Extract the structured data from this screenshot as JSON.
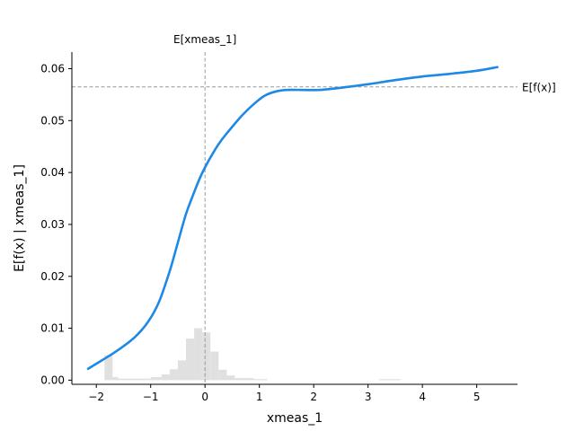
{
  "chart_data": {
    "type": "line",
    "xlabel": "xmeas_1",
    "ylabel": "E[f(x) | xmeas_1]",
    "xlim": [
      -2.45,
      5.75
    ],
    "ylim": [
      -0.0008,
      0.0632
    ],
    "x_ticks": [
      -2,
      -1,
      0,
      1,
      2,
      3,
      4,
      5
    ],
    "y_ticks": [
      0.0,
      0.01,
      0.02,
      0.03,
      0.04,
      0.05,
      0.06
    ],
    "y_tick_labels": [
      "0.00",
      "0.01",
      "0.02",
      "0.03",
      "0.04",
      "0.05",
      "0.06"
    ],
    "x_tick_labels": [
      "−2",
      "−1",
      "0",
      "1",
      "2",
      "3",
      "4",
      "5"
    ],
    "series": [
      {
        "name": "E[f(x) | xmeas_1]",
        "color": "#1e88e5",
        "x": [
          -2.15,
          -1.9,
          -1.6,
          -1.3,
          -1.05,
          -0.85,
          -0.65,
          -0.5,
          -0.35,
          -0.2,
          -0.1,
          0.0,
          0.15,
          0.3,
          0.5,
          0.7,
          0.9,
          1.1,
          1.3,
          1.5,
          1.8,
          2.1,
          2.4,
          2.7,
          3.0,
          3.5,
          4.0,
          4.5,
          5.0,
          5.38
        ],
        "y": [
          0.0022,
          0.0038,
          0.0058,
          0.0082,
          0.0112,
          0.015,
          0.021,
          0.0265,
          0.032,
          0.0362,
          0.0388,
          0.041,
          0.0438,
          0.0462,
          0.0488,
          0.0512,
          0.0532,
          0.0548,
          0.0556,
          0.0559,
          0.0559,
          0.0559,
          0.0562,
          0.0566,
          0.057,
          0.0578,
          0.0585,
          0.059,
          0.0596,
          0.0603
        ]
      }
    ],
    "reference_lines": {
      "vertical": {
        "x": 0.0,
        "label": "E[xmeas_1]"
      },
      "horizontal": {
        "y": 0.0565,
        "label": "E[f(x)]"
      },
      "color": "#999999"
    },
    "histogram": {
      "color": "#e0e0e0",
      "bins": [
        {
          "x0": -1.85,
          "x1": -1.7,
          "height": 0.0048
        },
        {
          "x0": -1.7,
          "x1": -1.6,
          "height": 0.0006
        },
        {
          "x0": -1.6,
          "x1": -1.0,
          "height": 0.0003
        },
        {
          "x0": -1.0,
          "x1": -0.8,
          "height": 0.0006
        },
        {
          "x0": -0.8,
          "x1": -0.65,
          "height": 0.0011
        },
        {
          "x0": -0.65,
          "x1": -0.5,
          "height": 0.0021
        },
        {
          "x0": -0.5,
          "x1": -0.35,
          "height": 0.0038
        },
        {
          "x0": -0.35,
          "x1": -0.2,
          "height": 0.008
        },
        {
          "x0": -0.2,
          "x1": -0.05,
          "height": 0.01
        },
        {
          "x0": -0.05,
          "x1": 0.1,
          "height": 0.0092
        },
        {
          "x0": 0.1,
          "x1": 0.25,
          "height": 0.0055
        },
        {
          "x0": 0.25,
          "x1": 0.4,
          "height": 0.002
        },
        {
          "x0": 0.4,
          "x1": 0.55,
          "height": 0.0009
        },
        {
          "x0": 0.55,
          "x1": 0.9,
          "height": 0.0004
        },
        {
          "x0": 0.9,
          "x1": 1.15,
          "height": 0.0002
        },
        {
          "x0": 3.2,
          "x1": 3.6,
          "height": 0.0002
        }
      ]
    }
  }
}
